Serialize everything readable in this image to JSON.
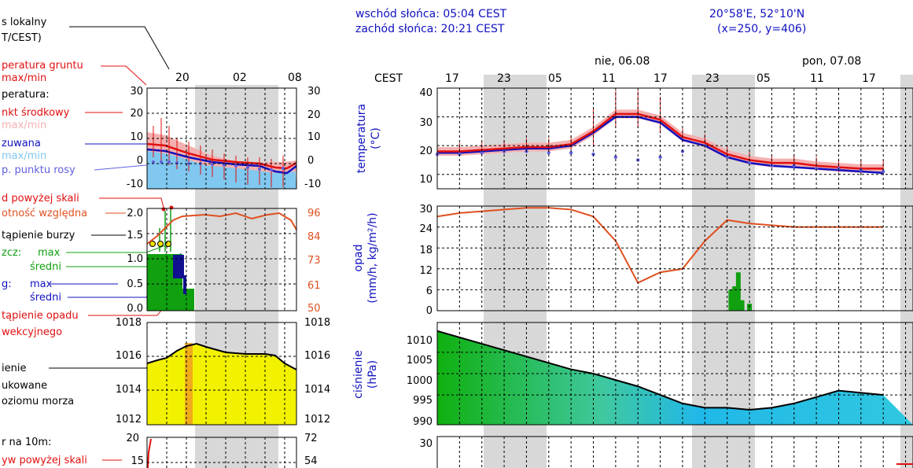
{
  "colors": {
    "temperature_line": "#e01010",
    "temperature_band": "#f4b0b0",
    "perceived_line": "#1010c0",
    "perceived_band": "#80c8f0",
    "dewpoint": "#6060e0",
    "humidity": "#e05020",
    "precip": "#10a010",
    "storm": "#101090",
    "pressure_fill": "#f2f200",
    "pressure_line": "#000000",
    "night_shade": "#d8d8d8",
    "blue_text": "#1010c0",
    "red_text": "#e01010",
    "green_text": "#10a010"
  },
  "header": {
    "sunrise": "wschód słońca: 05:04 CEST",
    "sunset": "zachód słońca: 20:21 CEST",
    "coords": "20°58'E, 52°10'N",
    "grid": "(x=250,  y=406)"
  },
  "legend": {
    "time_local": "s lokalny",
    "time_zone": "T/CEST)",
    "soil_temp": "peratura gruntu",
    "soil_maxmin": "max/min",
    "temp": "peratura:",
    "mid_point": "nkt środkowy",
    "mid_maxmin": "max/min",
    "perceived": "zuwana",
    "perceived_maxmin": "max/min",
    "dew": "p. punktu rosy",
    "precip_above": "d powyżej skali",
    "humidity": "otność względna",
    "storm": "tąpienie burzy",
    "precip_label": "zcz:",
    "precip_max": "max",
    "precip_avg": "średni",
    "storm_label": "g:",
    "storm_max": "max",
    "storm_avg": "średni",
    "conv_occ": "tąpienie opadu",
    "conv_type": "wekcyjnego",
    "pressure_1": "ienie",
    "pressure_2": "ukowane",
    "pressure_3": "oziomu morza",
    "wind": "r na 10m:",
    "wind_above": "yw powyżej skali"
  },
  "left_chart": {
    "hour_ticks": [
      "20",
      "02",
      "08"
    ],
    "temp_left_ticks": [
      "30",
      "20",
      "10",
      "0",
      "-10"
    ],
    "temp_right_ticks": [
      "30",
      "20",
      "10",
      "0",
      "-10"
    ],
    "precip_left_ticks": [
      "2.0",
      "1.5",
      "1.0",
      "0.5",
      "0.0"
    ],
    "precip_right_ticks": [
      "96",
      "84",
      "73",
      "61",
      "50"
    ],
    "pressure_left_ticks": [
      "1018",
      "1016",
      "1014",
      "1012"
    ],
    "pressure_right_ticks": [
      "1018",
      "1016",
      "1014",
      "1012"
    ],
    "wind_left_ticks": [
      "20",
      "15"
    ],
    "wind_right_ticks": [
      "72",
      "54"
    ]
  },
  "main_chart": {
    "tz": "CEST",
    "day1": "nie, 06.08",
    "day2": "pon, 07.08",
    "hour_ticks": [
      "17",
      "23",
      "05",
      "11",
      "17",
      "23",
      "05",
      "11",
      "17"
    ],
    "temp_axis": "temperatura",
    "temp_unit": "(°C)",
    "temp_ticks": [
      "40",
      "30",
      "20",
      "10"
    ],
    "precip_axis": "opad",
    "precip_unit": "(mm/h, kg/m²/h)",
    "precip_ticks": [
      "30",
      "24",
      "18",
      "12",
      "6",
      "0"
    ],
    "pressure_axis": "ciśnienie",
    "pressure_unit": "(hPa)",
    "pressure_ticks": [
      "1010",
      "1005",
      "1000",
      "995",
      "990"
    ],
    "wind_ticks": [
      "30"
    ]
  },
  "chart_data": [
    {
      "type": "line",
      "name": "temperatura",
      "x_hours": [
        0,
        3,
        6,
        9,
        12,
        15,
        18,
        21,
        24,
        27,
        30,
        33,
        36,
        39,
        42,
        45,
        48,
        51,
        54,
        57,
        60
      ],
      "series": [
        {
          "name": "temperatura",
          "values": [
            18,
            18,
            18.5,
            19,
            19.5,
            19.5,
            20.5,
            25,
            31,
            31,
            29,
            23,
            21,
            17,
            15,
            14,
            14,
            13,
            12.5,
            12,
            12
          ]
        },
        {
          "name": "odczuwana",
          "values": [
            17.5,
            17.5,
            18,
            18.5,
            19,
            19,
            20,
            24.5,
            30,
            30,
            28,
            22,
            20,
            16,
            14,
            13,
            12.5,
            12,
            11.5,
            11,
            10.5
          ]
        },
        {
          "name": "temp. punktu rosy",
          "values": [
            17,
            17,
            17.5,
            18,
            18,
            17.5,
            17.5,
            17,
            16,
            15,
            16,
            18,
            20,
            16,
            14,
            13,
            13,
            12,
            12,
            11.5,
            11
          ]
        }
      ],
      "ylim": [
        5,
        40
      ]
    },
    {
      "type": "line",
      "name": "opad",
      "x_hours": [
        0,
        3,
        6,
        9,
        12,
        15,
        18,
        21,
        24,
        27,
        30,
        33,
        36,
        39,
        42,
        45,
        48,
        51,
        54,
        57,
        60
      ],
      "series": [
        {
          "name": "wilgotność względna",
          "values": [
            27,
            28,
            28.5,
            29,
            29.5,
            29.5,
            29,
            27,
            20,
            8,
            11,
            12,
            20,
            26,
            25,
            24.5,
            24,
            24,
            24,
            24,
            24
          ]
        }
      ],
      "bars": [
        {
          "hour": 39.5,
          "value": 6
        },
        {
          "hour": 40,
          "value": 7
        },
        {
          "hour": 40.5,
          "value": 11
        },
        {
          "hour": 41,
          "value": 3
        },
        {
          "hour": 42,
          "value": 2
        }
      ],
      "ylim": [
        0,
        30
      ]
    },
    {
      "type": "area",
      "name": "ciśnienie",
      "x_hours": [
        0,
        3,
        6,
        9,
        12,
        15,
        18,
        21,
        24,
        27,
        30,
        33,
        36,
        39,
        42,
        45,
        48,
        51,
        54,
        57,
        60
      ],
      "values": [
        1010,
        1008.5,
        1007,
        1005.5,
        1004,
        1002.5,
        1001,
        1000,
        998.5,
        997,
        995,
        993,
        992,
        992,
        991.5,
        992,
        993,
        994.5,
        996,
        995.5,
        995
      ],
      "ylim": [
        988,
        1012
      ]
    }
  ]
}
